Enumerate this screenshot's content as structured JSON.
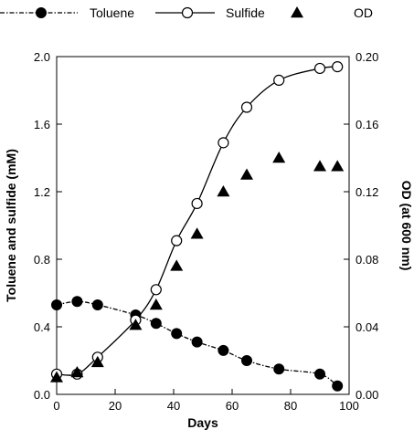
{
  "chart_data": {
    "type": "scatter",
    "xlabel": "Days",
    "ylabel_left": "Toluene and sulfide (mM)",
    "ylabel_right": "OD (at 600 nm)",
    "xlim": [
      0,
      100
    ],
    "ylim_left": [
      0.0,
      2.0
    ],
    "ylim_right": [
      0.0,
      0.2
    ],
    "x_ticks": [
      0,
      20,
      40,
      60,
      80,
      100
    ],
    "x_tick_labels": [
      "0",
      "20",
      "40",
      "60",
      "80",
      "100"
    ],
    "y_left_ticks": [
      0.0,
      0.4,
      0.8,
      1.2,
      1.6,
      2.0
    ],
    "y_left_tick_labels": [
      "0.0",
      "0.4",
      "0.8",
      "1.2",
      "1.6",
      "2.0"
    ],
    "y_right_ticks": [
      0.0,
      0.04,
      0.08,
      0.12,
      0.16,
      0.2
    ],
    "y_right_tick_labels": [
      "0.00",
      "0.04",
      "0.08",
      "0.12",
      "0.16",
      "0.20"
    ],
    "grid": false,
    "legend_position": "top",
    "series": [
      {
        "name": "Toluene",
        "axis": "left",
        "marker": "filled-circle",
        "line": "dash-dot",
        "x": [
          0,
          7,
          14,
          27,
          34,
          41,
          48,
          57,
          65,
          76,
          90,
          96
        ],
        "y": [
          0.53,
          0.55,
          0.53,
          0.47,
          0.42,
          0.36,
          0.31,
          0.26,
          0.2,
          0.15,
          0.12,
          0.05
        ]
      },
      {
        "name": "Sulfide",
        "axis": "left",
        "marker": "open-circle",
        "line": "solid",
        "x": [
          0,
          7,
          14,
          27,
          34,
          41,
          48,
          57,
          65,
          76,
          90,
          96
        ],
        "y": [
          0.12,
          0.12,
          0.22,
          0.44,
          0.62,
          0.91,
          1.13,
          1.49,
          1.7,
          1.86,
          1.93,
          1.94
        ]
      },
      {
        "name": "OD",
        "axis": "right",
        "marker": "filled-triangle",
        "line": "none",
        "x": [
          0,
          7,
          14,
          27,
          34,
          41,
          48,
          57,
          65,
          76,
          90,
          96
        ],
        "y": [
          0.01,
          0.013,
          0.019,
          0.041,
          0.053,
          0.076,
          0.095,
          0.12,
          0.13,
          0.14,
          0.135,
          0.135
        ]
      }
    ]
  }
}
